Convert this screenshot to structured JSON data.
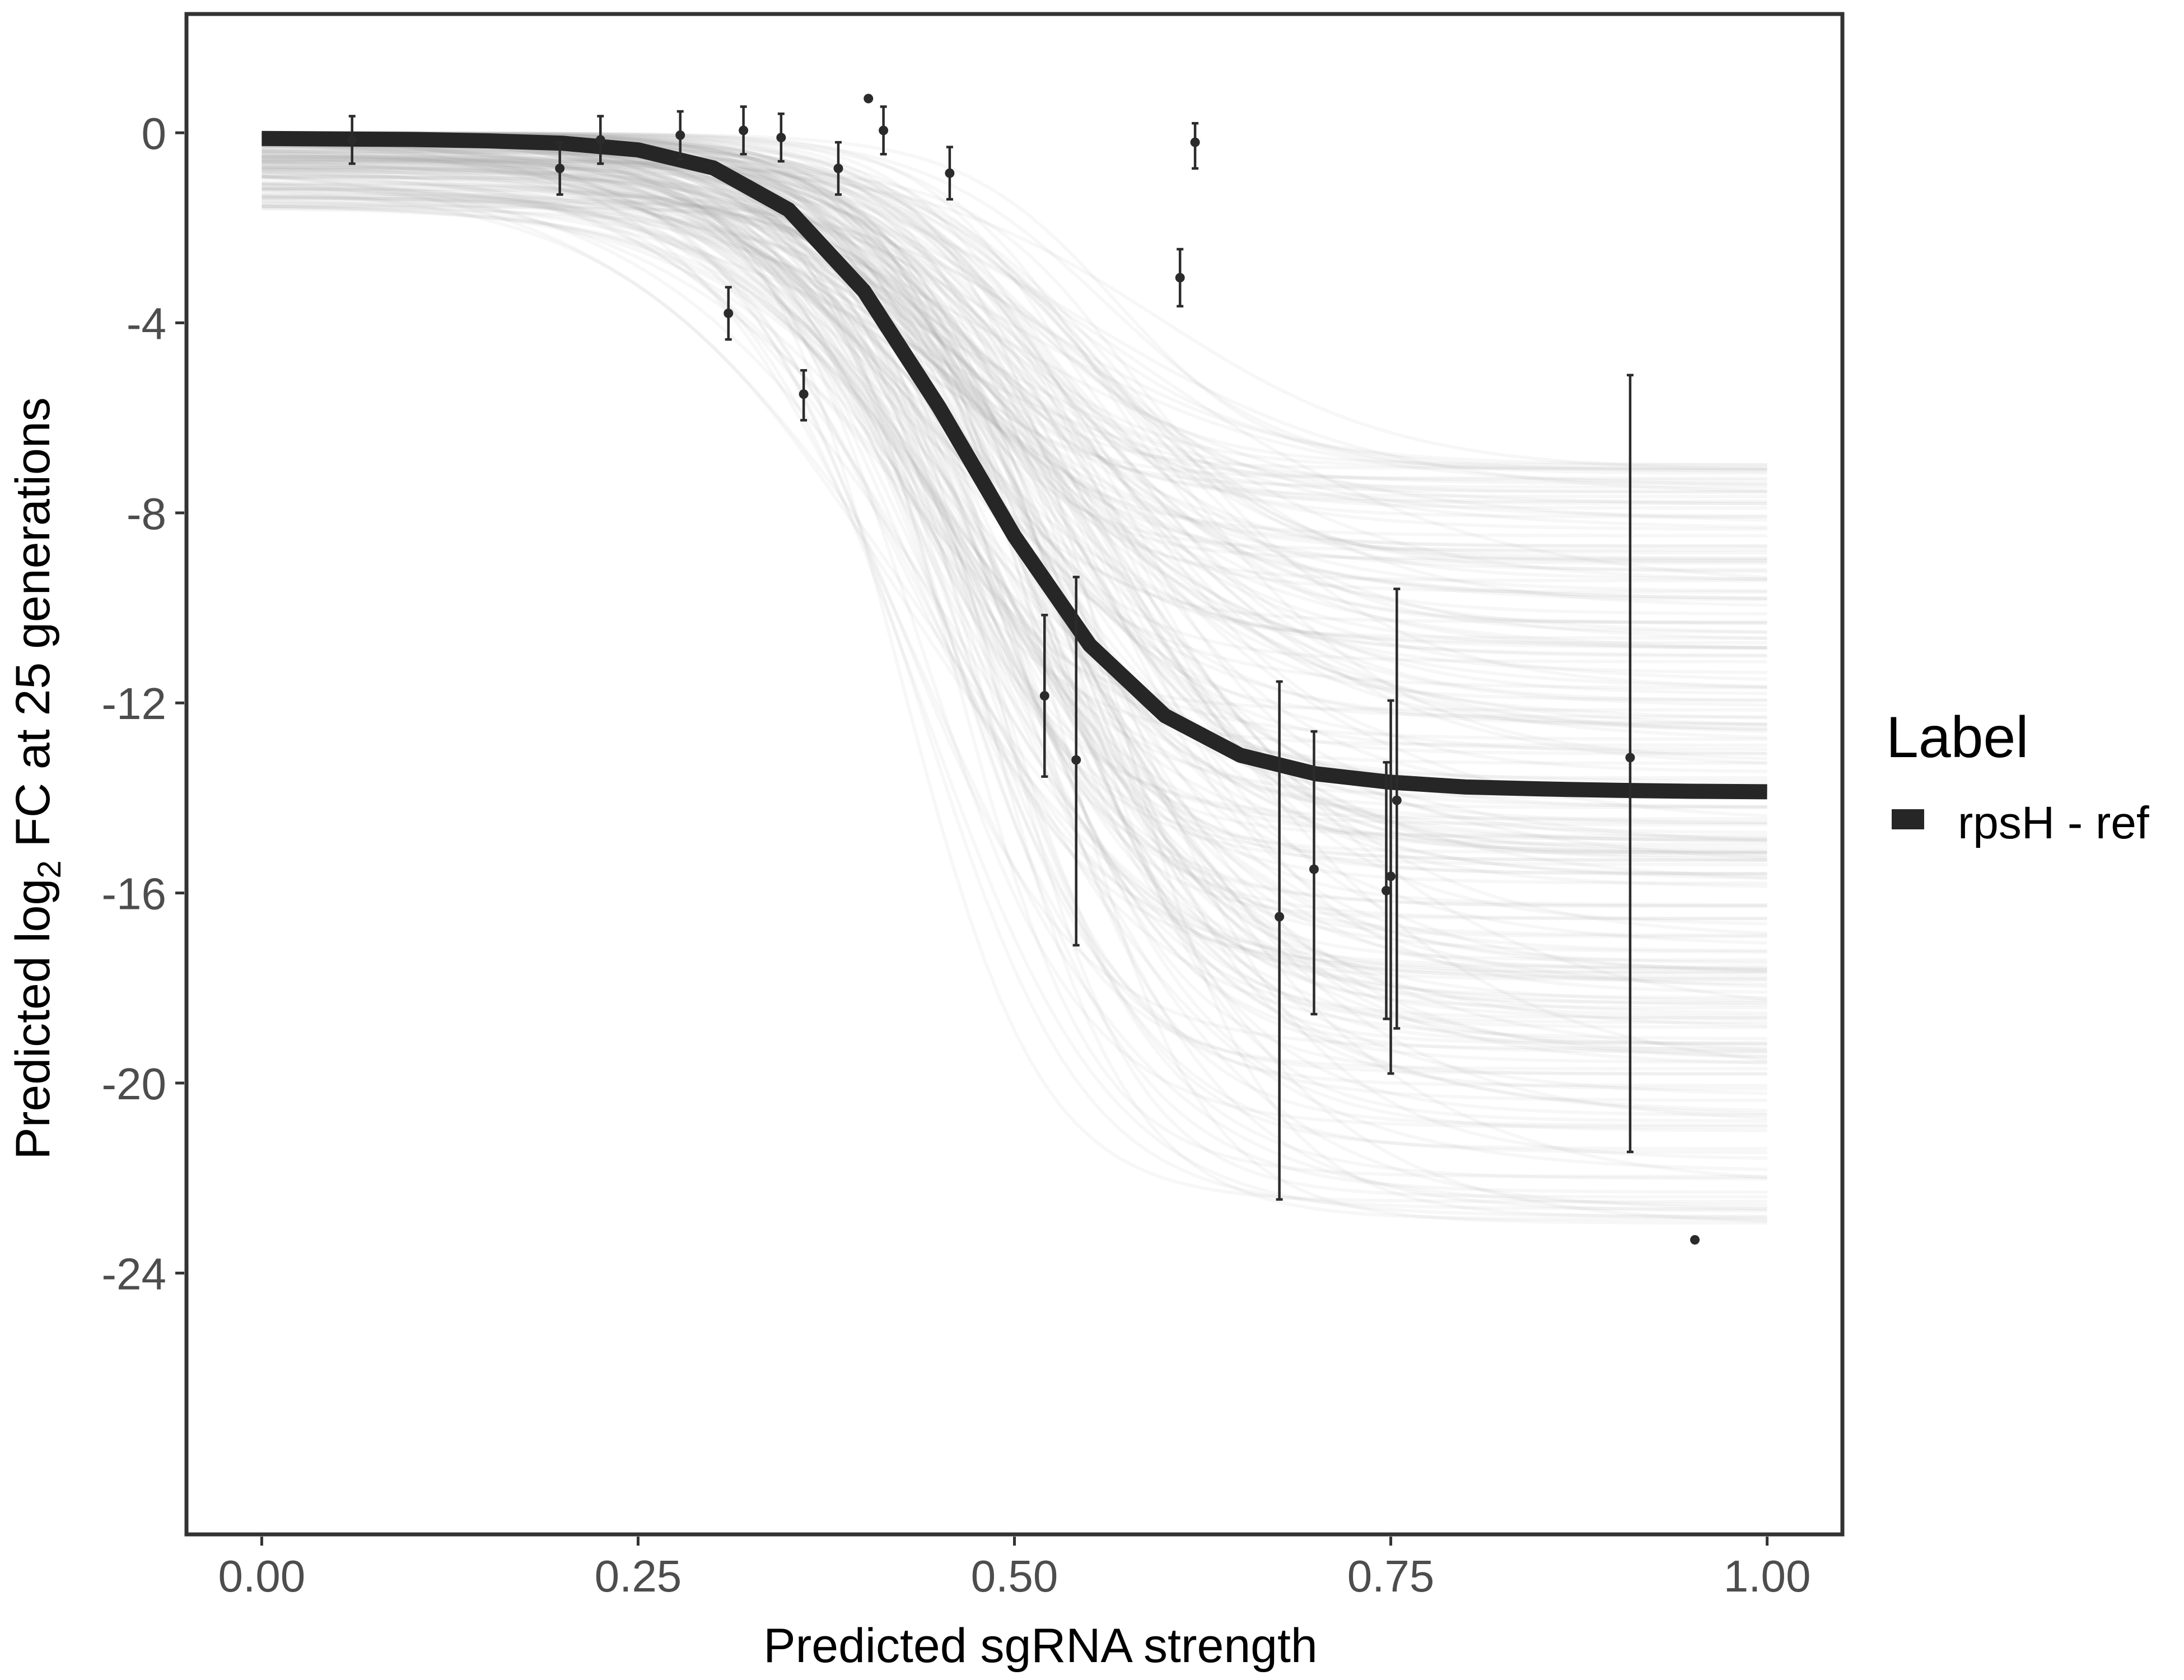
{
  "chart_data": {
    "type": "line",
    "xlabel": "Predicted sgRNA strength",
    "ylabel_pre": "Predicted  log",
    "ylabel_sub": "2",
    "ylabel_post": " FC at 25 generations",
    "xlim": [
      -0.05,
      1.05
    ],
    "ylim": [
      -29.5,
      2.5
    ],
    "x_ticks": [
      0.0,
      0.25,
      0.5,
      0.75,
      1.0
    ],
    "x_tick_labels": [
      "0.00",
      "0.25",
      "0.50",
      "0.75",
      "1.00"
    ],
    "y_ticks": [
      0,
      -4,
      -8,
      -12,
      -16,
      -20,
      -24
    ],
    "y_tick_labels": [
      "0",
      "-4",
      "-8",
      "-12",
      "-16",
      "-20",
      "-24"
    ],
    "grid": false,
    "legend": {
      "title": "Label",
      "position": "right",
      "entries": [
        {
          "label": "rpsH - ref",
          "color": "#262626"
        }
      ]
    },
    "fit": {
      "name": "rpsH - ref",
      "color": "#262626",
      "points": [
        [
          0.0,
          -0.12
        ],
        [
          0.05,
          -0.13
        ],
        [
          0.1,
          -0.14
        ],
        [
          0.15,
          -0.17
        ],
        [
          0.2,
          -0.22
        ],
        [
          0.25,
          -0.36
        ],
        [
          0.3,
          -0.74
        ],
        [
          0.35,
          -1.62
        ],
        [
          0.4,
          -3.33
        ],
        [
          0.45,
          -5.78
        ],
        [
          0.5,
          -8.49
        ],
        [
          0.55,
          -10.78
        ],
        [
          0.6,
          -12.27
        ],
        [
          0.65,
          -13.1
        ],
        [
          0.7,
          -13.49
        ],
        [
          0.75,
          -13.67
        ],
        [
          0.8,
          -13.77
        ],
        [
          0.85,
          -13.81
        ],
        [
          0.9,
          -13.84
        ],
        [
          0.95,
          -13.86
        ],
        [
          1.0,
          -13.87
        ]
      ]
    },
    "posterior_band": {
      "color": "#a8a8a8",
      "count": 220,
      "lower_asymptote_range": [
        -23.3,
        -6.9
      ],
      "midpoint_range": [
        0.36,
        0.62
      ]
    },
    "observations": [
      {
        "x": 0.06,
        "y": -0.15,
        "lo": -0.65,
        "hi": 0.35
      },
      {
        "x": 0.198,
        "y": -0.75,
        "lo": -1.3,
        "hi": -0.2
      },
      {
        "x": 0.225,
        "y": -0.15,
        "lo": -0.65,
        "hi": 0.35
      },
      {
        "x": 0.278,
        "y": -0.05,
        "lo": -0.55,
        "hi": 0.45
      },
      {
        "x": 0.31,
        "y": -3.8,
        "lo": -4.35,
        "hi": -3.25
      },
      {
        "x": 0.32,
        "y": 0.05,
        "lo": -0.45,
        "hi": 0.55
      },
      {
        "x": 0.345,
        "y": -0.1,
        "lo": -0.6,
        "hi": 0.4
      },
      {
        "x": 0.36,
        "y": -5.5,
        "lo": -6.05,
        "hi": -5.0
      },
      {
        "x": 0.383,
        "y": -0.75,
        "lo": -1.3,
        "hi": -0.2
      },
      {
        "x": 0.403,
        "y": 0.72
      },
      {
        "x": 0.413,
        "y": 0.05,
        "lo": -0.45,
        "hi": 0.55
      },
      {
        "x": 0.457,
        "y": -0.85,
        "lo": -1.4,
        "hi": -0.3
      },
      {
        "x": 0.52,
        "y": -11.85,
        "lo": -13.55,
        "hi": -10.15
      },
      {
        "x": 0.541,
        "y": -13.2,
        "lo": -17.1,
        "hi": -9.35
      },
      {
        "x": 0.61,
        "y": -3.05,
        "lo": -3.65,
        "hi": -2.45
      },
      {
        "x": 0.62,
        "y": -0.2,
        "lo": -0.75,
        "hi": 0.2
      },
      {
        "x": 0.676,
        "y": -16.5,
        "lo": -22.45,
        "hi": -11.55
      },
      {
        "x": 0.699,
        "y": -15.5,
        "lo": -18.55,
        "hi": -12.6
      },
      {
        "x": 0.747,
        "y": -15.95,
        "lo": -18.65,
        "hi": -13.25
      },
      {
        "x": 0.75,
        "y": -15.65,
        "lo": -19.8,
        "hi": -11.95
      },
      {
        "x": 0.754,
        "y": -14.05,
        "lo": -18.85,
        "hi": -9.6
      },
      {
        "x": 0.909,
        "y": -13.15,
        "lo": -21.45,
        "hi": -5.1
      },
      {
        "x": 0.952,
        "y": -23.3
      }
    ]
  }
}
